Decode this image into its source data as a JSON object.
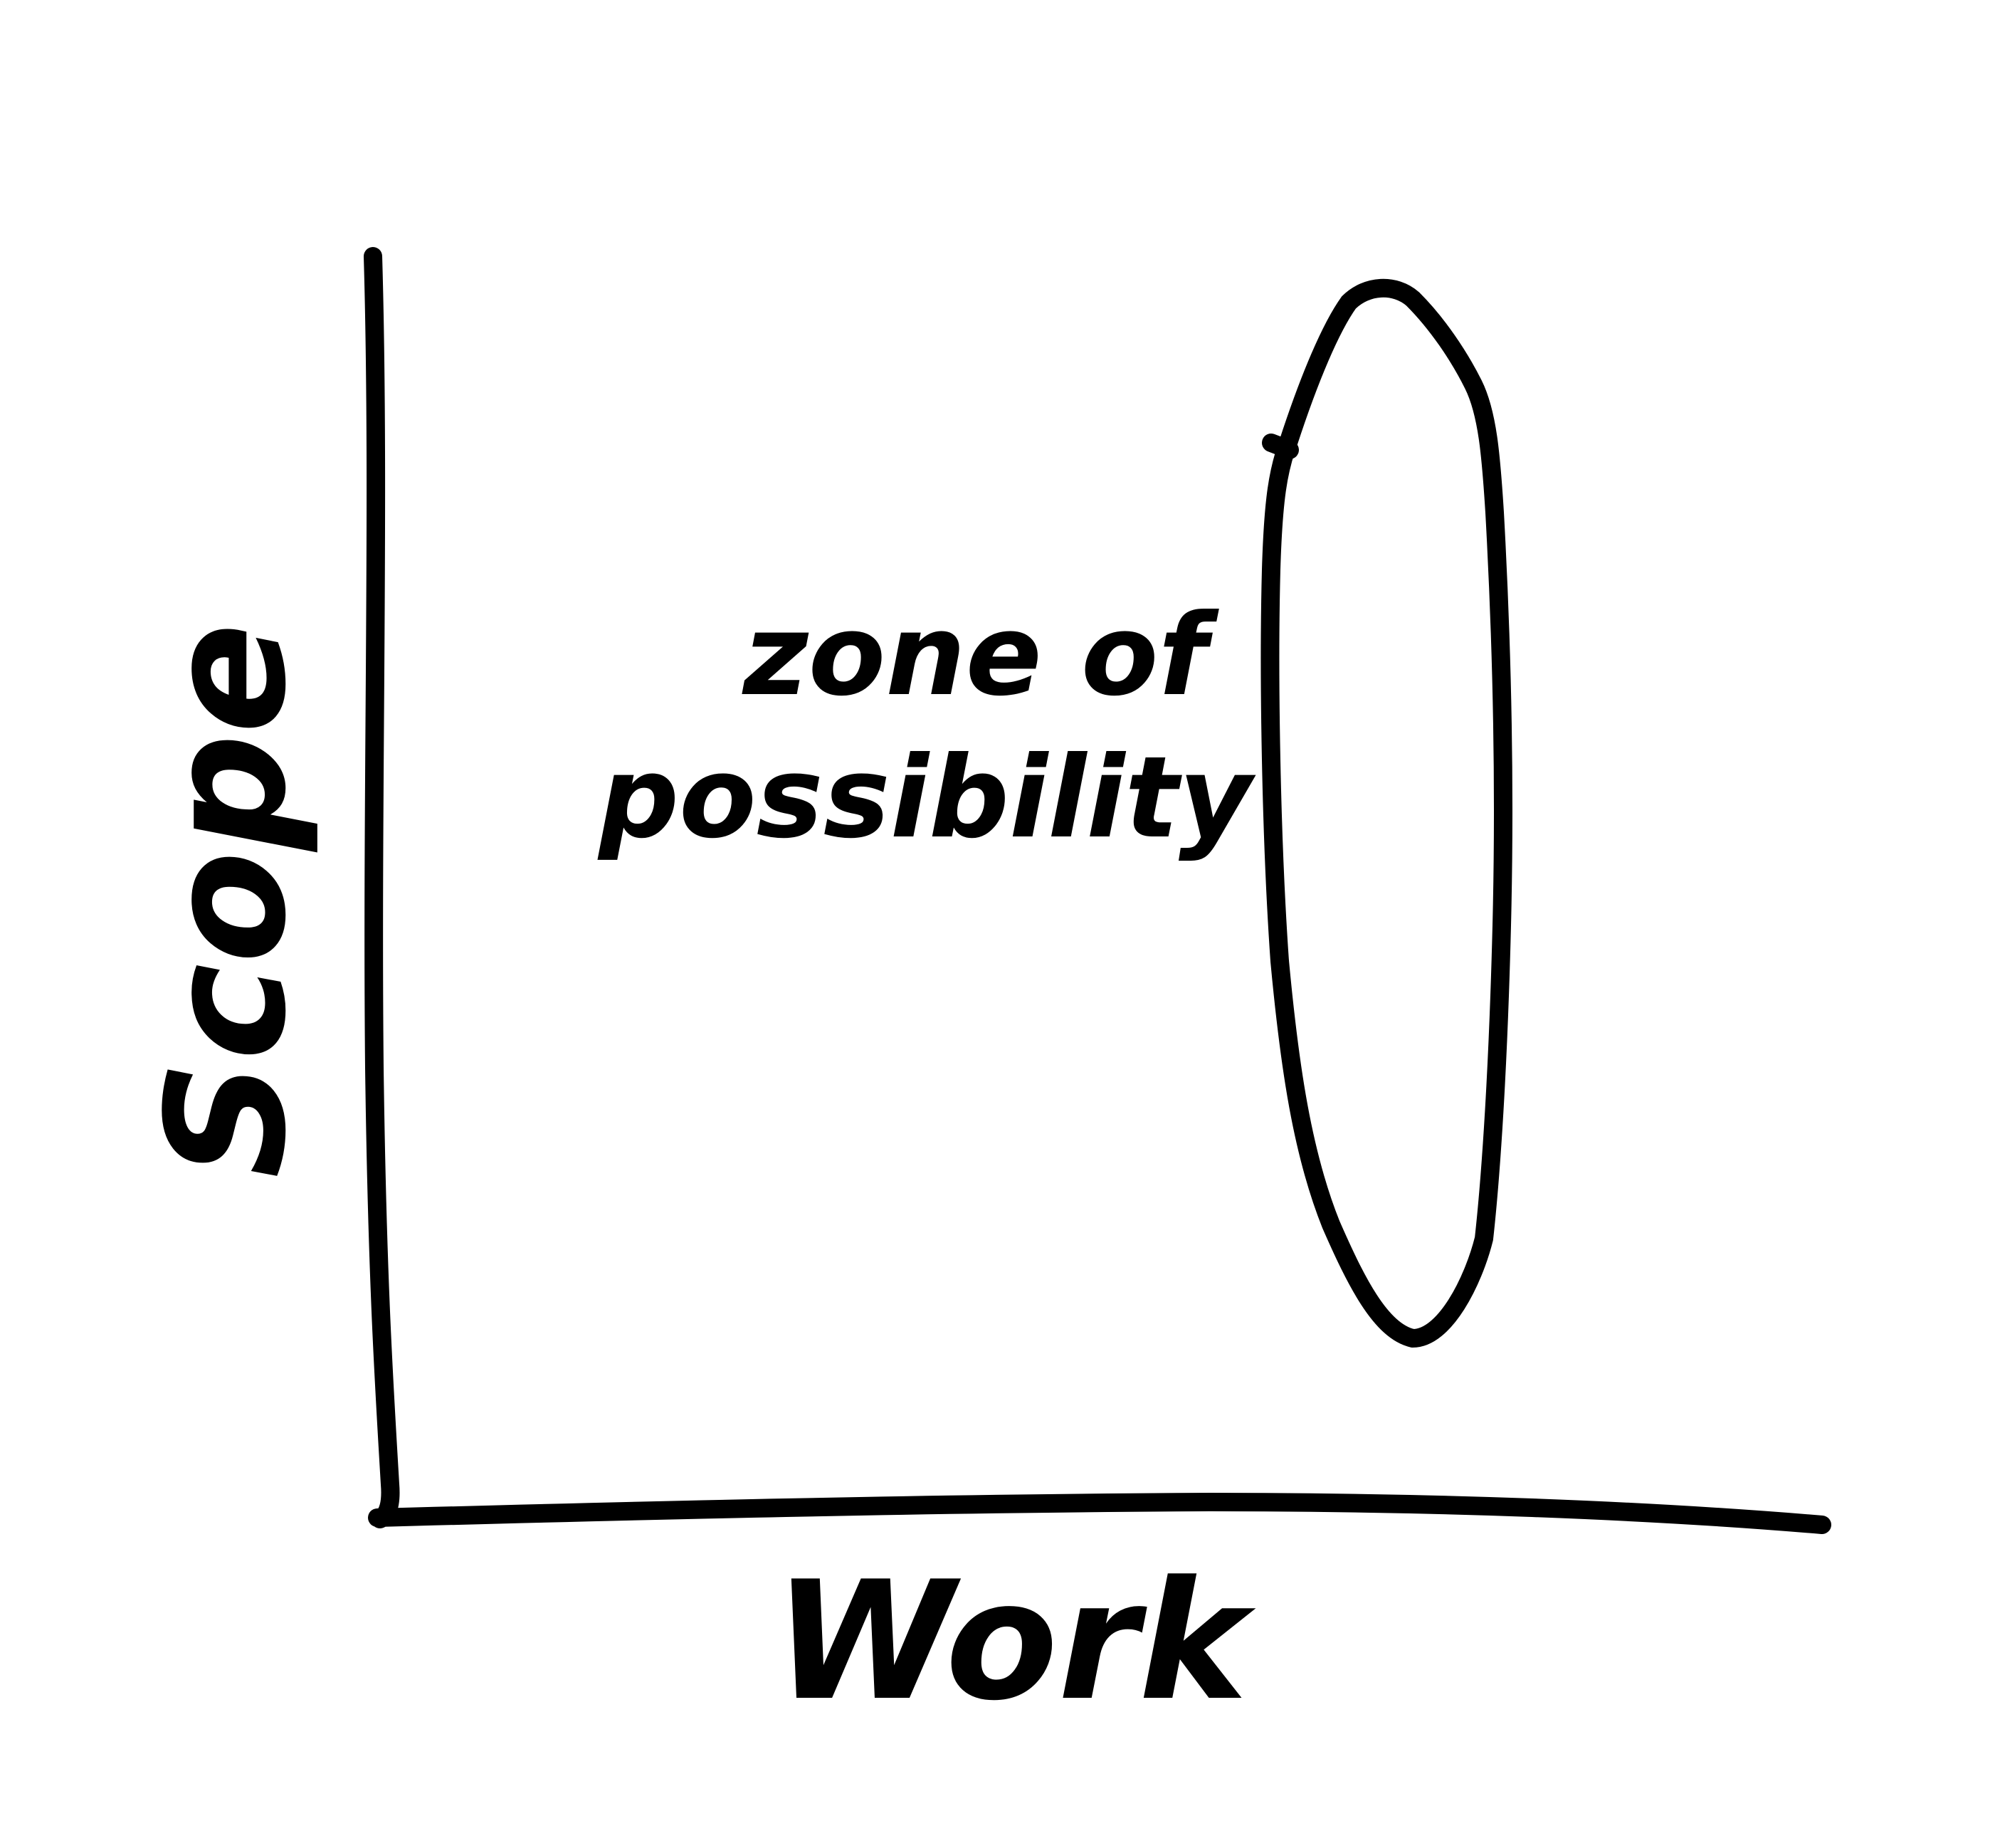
{
  "diagram": {
    "x_axis_label": "Work",
    "y_axis_label": "Scope",
    "zone_label_line1": "zone of",
    "zone_label_line2": "possibility",
    "colors": {
      "ink": "#000000",
      "background": "#ffffff"
    }
  }
}
